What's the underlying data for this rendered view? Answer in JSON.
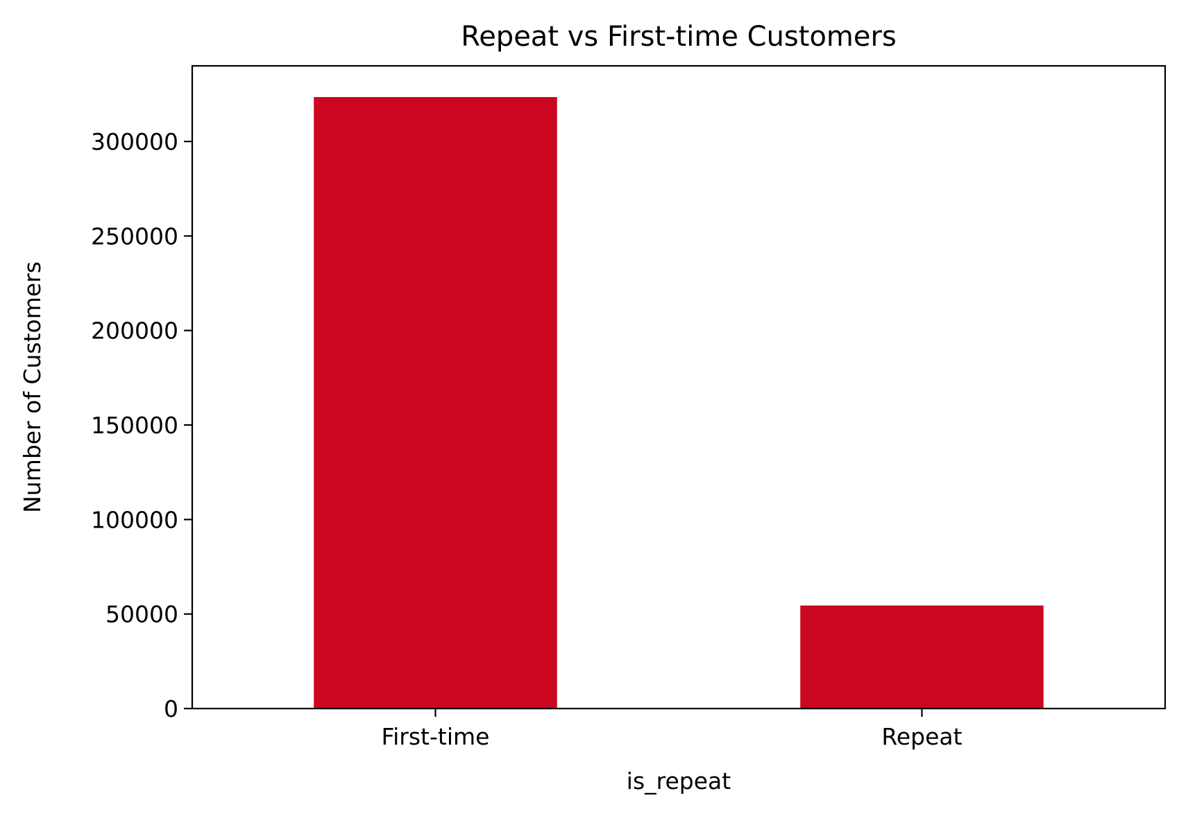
{
  "chart_data": {
    "type": "bar",
    "title": "Repeat vs First-time Customers",
    "xlabel": "is_repeat",
    "ylabel": "Number of Customers",
    "categories": [
      "First-time",
      "Repeat"
    ],
    "values": [
      323500,
      54500
    ],
    "ylim": [
      0,
      340000
    ],
    "yticks": [
      0,
      50000,
      100000,
      150000,
      200000,
      250000,
      300000
    ],
    "ytick_labels": [
      "0",
      "50000",
      "100000",
      "150000",
      "200000",
      "250000",
      "300000"
    ],
    "bar_color": "#CB071F",
    "grid": false,
    "legend": "none"
  }
}
